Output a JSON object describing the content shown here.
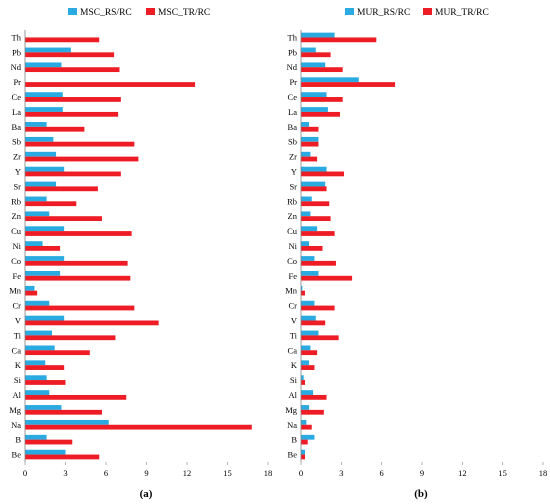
{
  "panels": [
    {
      "label": "(a)"
    },
    {
      "label": "(b)"
    }
  ],
  "chart_data": [
    {
      "type": "bar",
      "orientation": "horizontal",
      "panel_label": "(a)",
      "categories": [
        "Th",
        "Pb",
        "Nd",
        "Pr",
        "Ce",
        "La",
        "Ba",
        "Sb",
        "Zr",
        "Y",
        "Sr",
        "Rb",
        "Zn",
        "Cu",
        "Ni",
        "Co",
        "Fe",
        "Mn",
        "Cr",
        "V",
        "Ti",
        "Ca",
        "K",
        "Si",
        "Al",
        "Mg",
        "Na",
        "B",
        "Be"
      ],
      "series": [
        {
          "name": "MSC_RS/RC",
          "color": "#29abe2",
          "values": [
            0,
            3.4,
            2.7,
            0,
            2.8,
            2.8,
            1.6,
            2.1,
            2.3,
            2.9,
            2.3,
            1.6,
            1.8,
            2.9,
            1.3,
            2.9,
            2.6,
            0.7,
            1.8,
            2.9,
            2.0,
            2.2,
            1.5,
            1.6,
            1.8,
            2.7,
            6.2,
            1.6,
            3.0
          ]
        },
        {
          "name": "MSC_TR/RC",
          "color": "#ee1c24",
          "values": [
            5.5,
            6.6,
            7.0,
            12.6,
            7.1,
            6.9,
            4.4,
            8.1,
            8.4,
            7.1,
            5.4,
            3.8,
            5.7,
            7.9,
            2.6,
            7.6,
            7.8,
            0.9,
            8.1,
            9.9,
            6.7,
            4.8,
            2.9,
            3.0,
            7.5,
            5.7,
            16.8,
            3.5,
            5.5
          ]
        }
      ],
      "xlim": [
        0,
        18
      ],
      "xticks": [
        0,
        3,
        6,
        9,
        12,
        15,
        18
      ],
      "xticklabels": [
        "0",
        "3",
        "6",
        "9",
        "12",
        "15",
        "18"
      ],
      "legend_position": "top"
    },
    {
      "type": "bar",
      "orientation": "horizontal",
      "panel_label": "(b)",
      "categories": [
        "Th",
        "Pb",
        "Nd",
        "Pr",
        "Ce",
        "La",
        "Ba",
        "Sb",
        "Zr",
        "Y",
        "Sr",
        "Rb",
        "Zn",
        "Cu",
        "Ni",
        "Co",
        "Fe",
        "Mn",
        "Cr",
        "V",
        "Ti",
        "Ca",
        "K",
        "Si",
        "Al",
        "Mg",
        "Na",
        "B",
        "Be"
      ],
      "series": [
        {
          "name": "MUR_RS/RC",
          "color": "#29abe2",
          "values": [
            2.5,
            1.1,
            1.8,
            4.3,
            1.9,
            2.0,
            0.6,
            1.3,
            0.7,
            1.9,
            1.8,
            0.8,
            0.7,
            1.2,
            0.6,
            1.0,
            1.3,
            0.1,
            1.0,
            1.1,
            1.3,
            0.7,
            0.6,
            0.2,
            0.9,
            0.6,
            0.4,
            1.0,
            0.3
          ]
        },
        {
          "name": "MUR_TR/RC",
          "color": "#ee1c24",
          "values": [
            5.6,
            2.2,
            3.1,
            7.0,
            3.1,
            2.9,
            1.3,
            1.3,
            1.2,
            3.2,
            1.9,
            2.1,
            2.2,
            2.5,
            1.6,
            2.6,
            3.8,
            0.3,
            2.5,
            1.8,
            2.8,
            1.2,
            1.0,
            0.3,
            1.9,
            1.7,
            0.8,
            0.5,
            0.3
          ]
        }
      ],
      "xlim": [
        0,
        18
      ],
      "xticks": [
        0,
        3,
        6,
        9,
        12,
        15,
        18
      ],
      "xticklabels": [
        "0",
        "3",
        "6",
        "9",
        "12",
        "15",
        "18"
      ],
      "legend_position": "top"
    }
  ]
}
